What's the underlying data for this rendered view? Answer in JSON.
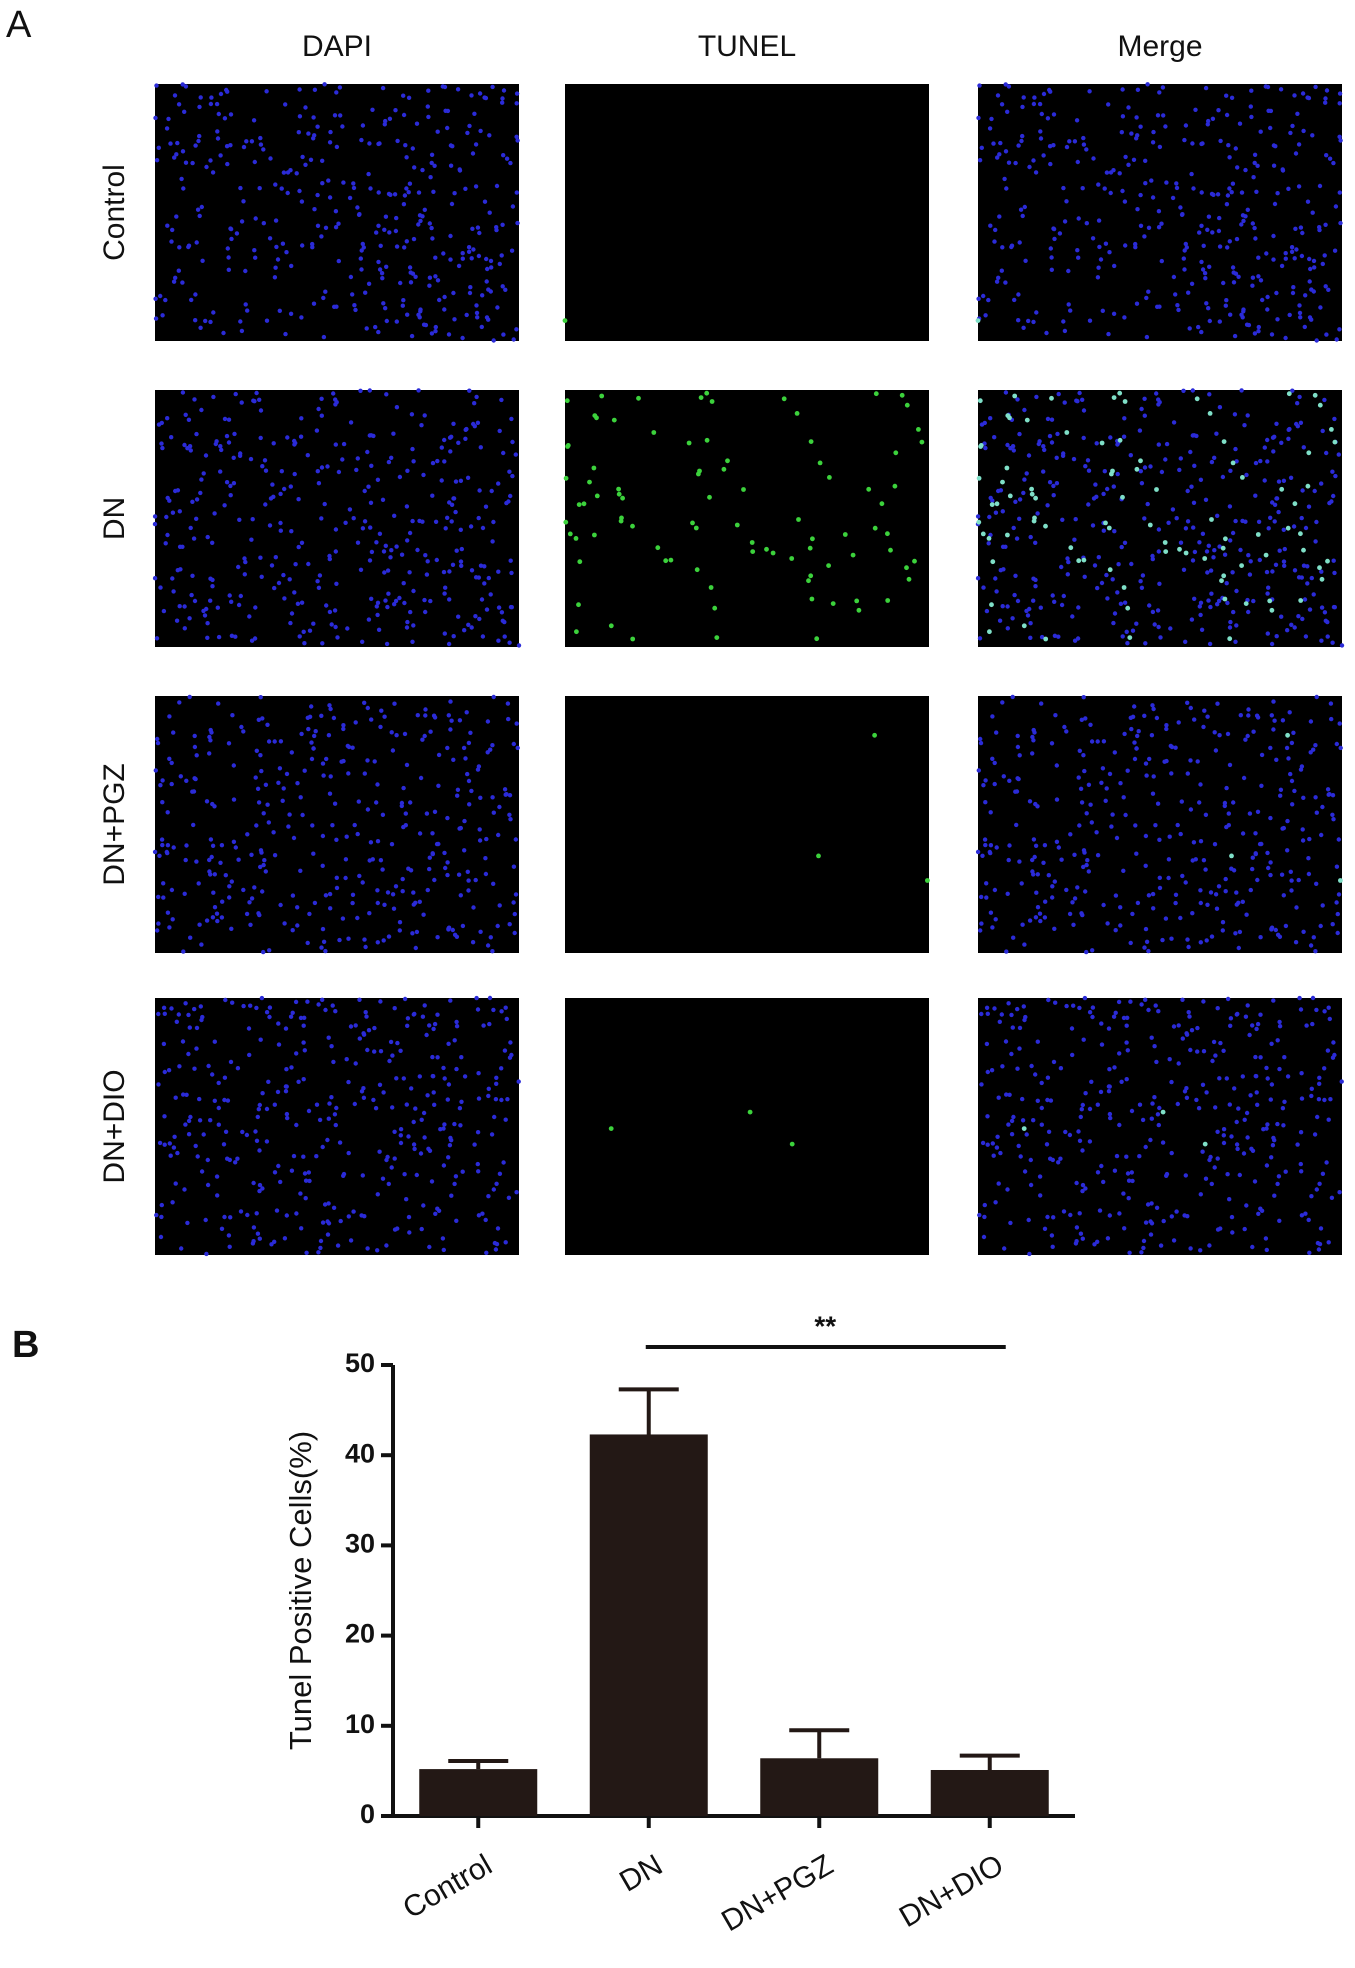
{
  "panel_a": {
    "label": "A",
    "columns": [
      "DAPI",
      "TUNEL",
      "Merge"
    ],
    "rows": [
      "Control",
      "DN",
      "DN+PGZ",
      "DN+DIO"
    ]
  },
  "chart_data": {
    "type": "bar",
    "panel_label": "B",
    "ylabel": "Tunel Positive Cells(%)",
    "categories": [
      "Control",
      "DN",
      "DN+PGZ",
      "DN+DIO"
    ],
    "values": [
      5.2,
      42.3,
      6.4,
      5.1
    ],
    "errors": [
      0.9,
      5.0,
      3.1,
      1.6
    ],
    "color": "#231815",
    "ylim": [
      0,
      50
    ],
    "yticks": [
      0,
      10,
      20,
      30,
      40,
      50
    ],
    "significance": "**"
  }
}
